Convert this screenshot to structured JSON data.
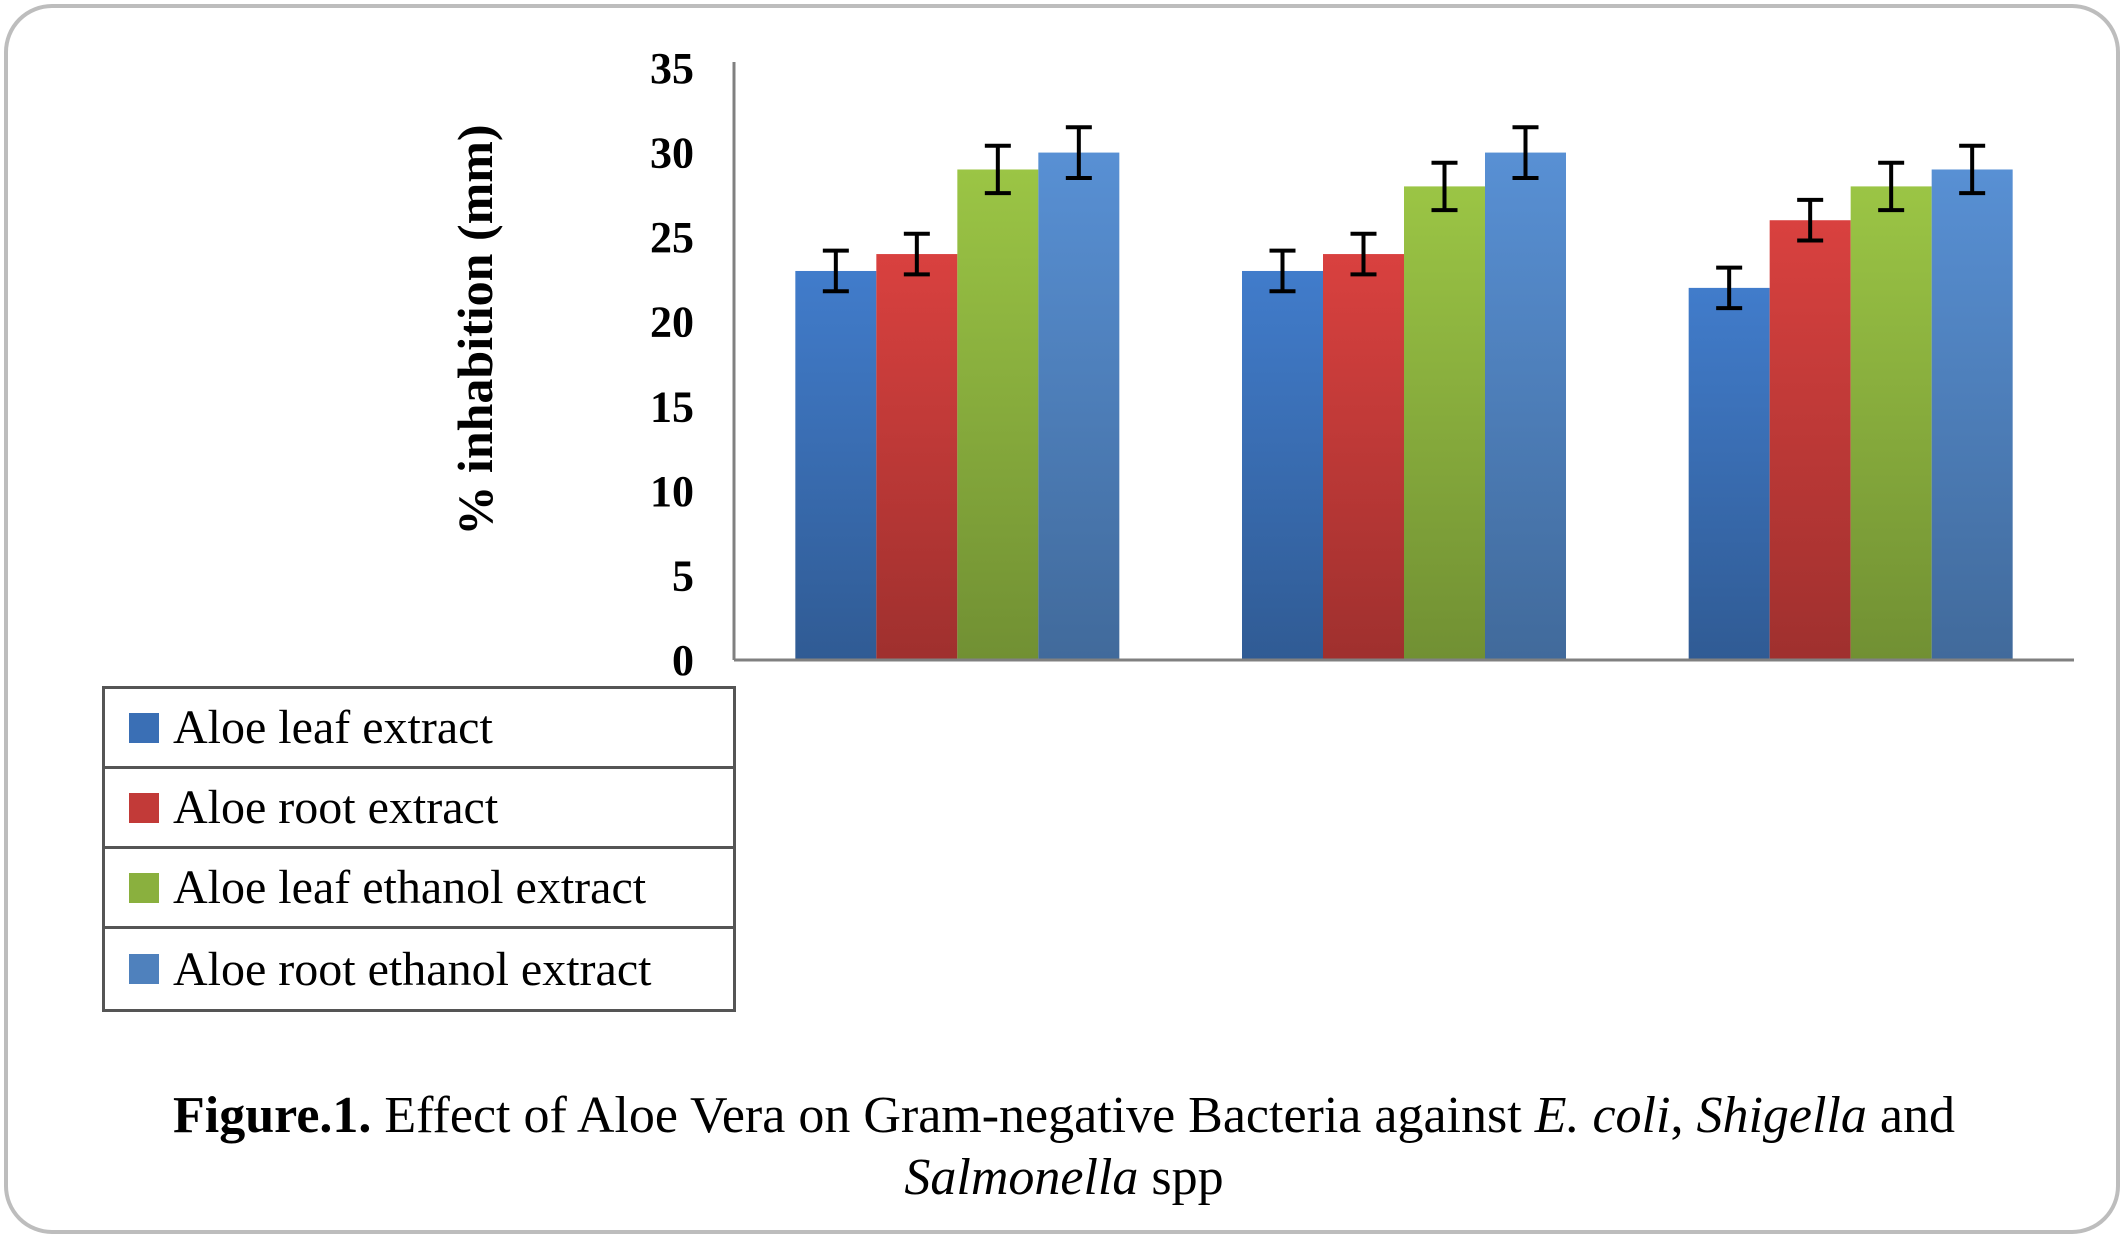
{
  "chart_data": {
    "type": "bar",
    "ylabel": "% inhabition (mm)",
    "xlabel": "",
    "ylim": [
      0,
      35
    ],
    "yticks": [
      0,
      5,
      10,
      15,
      20,
      25,
      30,
      35
    ],
    "categories": [
      "",
      "",
      ""
    ],
    "series": [
      {
        "name": "Aloe leaf extract",
        "color": "#3a6fb5",
        "values": [
          23,
          23,
          22
        ],
        "errors": [
          1.2,
          1.2,
          1.2
        ]
      },
      {
        "name": "Aloe root extract",
        "color": "#c23a38",
        "values": [
          24,
          24,
          26
        ],
        "errors": [
          1.2,
          1.2,
          1.2
        ]
      },
      {
        "name": "Aloe leaf ethanol extract",
        "color": "#8ab03e",
        "values": [
          29,
          28,
          28
        ],
        "errors": [
          1.4,
          1.4,
          1.4
        ]
      },
      {
        "name": "Aloe root ethanol extract",
        "color": "#4f81bd",
        "values": [
          30,
          30,
          29
        ],
        "errors": [
          1.5,
          1.5,
          1.4
        ]
      }
    ],
    "legend": "bottom-left",
    "grid": false
  },
  "caption": {
    "fig_label": "Figure.1.",
    "text_1": " Effect of Aloe Vera on Gram-negative Bacteria against ",
    "ecoli": "E. coli",
    "comma": ", ",
    "shigella": "Shigella",
    "and": " and",
    "salmonella": "Salmonella",
    "spp": " spp"
  }
}
